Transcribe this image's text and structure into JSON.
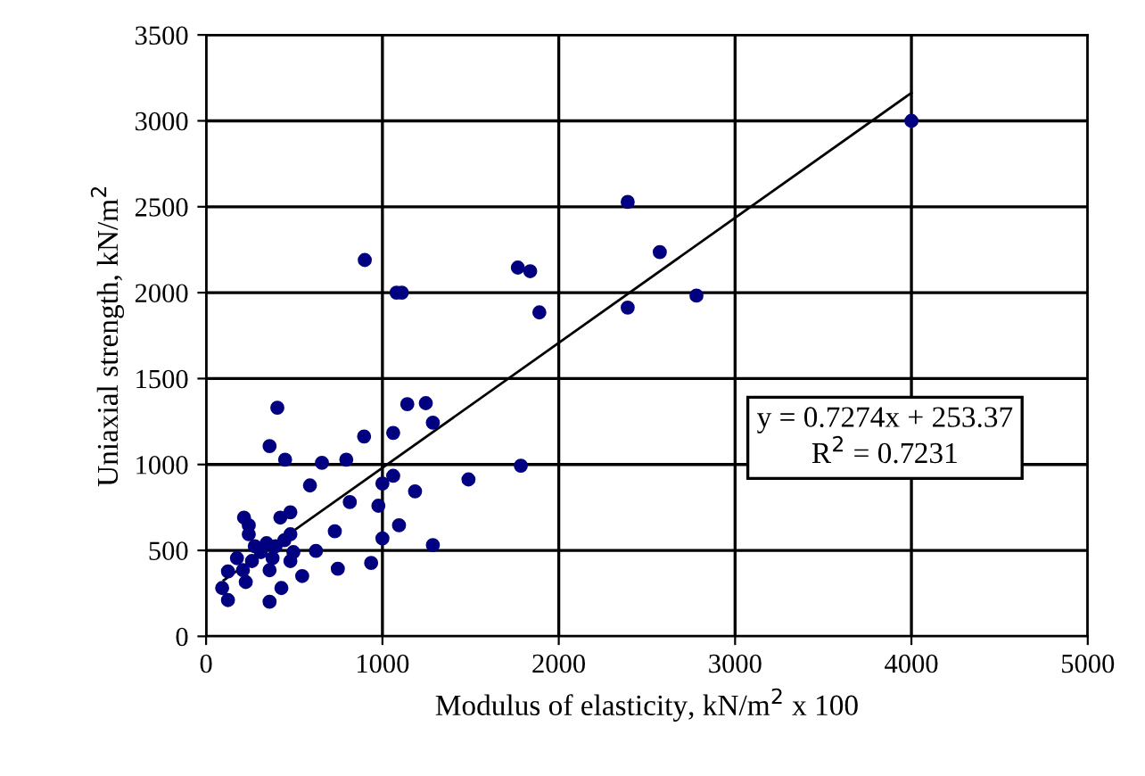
{
  "chart_data": {
    "type": "scatter",
    "xlabel": "Modulus of elasticity, kN/m$^{2}$ x 100",
    "ylabel": "Uniaxial strength, kN/m$^{2}$",
    "xlim": [
      0,
      5000
    ],
    "xticks": [
      0,
      1000,
      2000,
      3000,
      4000,
      5000
    ],
    "ylim": [
      0,
      3500
    ],
    "yticks": [
      0,
      500,
      1000,
      1500,
      2000,
      2500,
      3000,
      3500
    ],
    "grid": true,
    "annotations": [
      "y = 0.7274x + 253.37",
      "R$^{2}$ = 0.7231"
    ],
    "series": [
      {
        "marker": "circle",
        "color": "#000080",
        "x": [
          404,
          1141,
          1246,
          1286,
          360,
          448,
          657,
          795,
          896,
          1061,
          1785,
          1488,
          589,
          1000,
          1061,
          1185,
          815,
          977,
          478,
          421,
          215,
          730,
          1094,
          1000,
          1286,
          623,
          747,
          936,
          545,
          427,
          360,
          124,
          91,
          124,
          242,
          276,
          310,
          343,
          394,
          444,
          478,
          495,
          377,
          260,
          209,
          175,
          225,
          360,
          478,
          242,
          2391,
          2573,
          2391,
          2781,
          4000,
          1890,
          900,
          1080,
          1110,
          1768,
          1838
        ],
        "values": [
          1330,
          1351,
          1357,
          1243,
          1107,
          1028,
          1010,
          1028,
          1163,
          1184,
          993,
          913,
          878,
          889,
          934,
          844,
          781,
          760,
          722,
          691,
          691,
          611,
          646,
          570,
          531,
          497,
          393,
          427,
          351,
          281,
          201,
          211,
          281,
          378,
          594,
          524,
          490,
          542,
          524,
          559,
          594,
          490,
          455,
          438,
          385,
          455,
          316,
          385,
          438,
          646,
          2528,
          2236,
          1913,
          1983,
          3000,
          1885,
          2190,
          2000,
          2000,
          2146,
          2125
        ]
      },
      {
        "type": "line",
        "marker": "none",
        "color": "#000000",
        "x": [
          100,
          4000
        ],
        "values": [
          326,
          3163
        ]
      }
    ]
  }
}
